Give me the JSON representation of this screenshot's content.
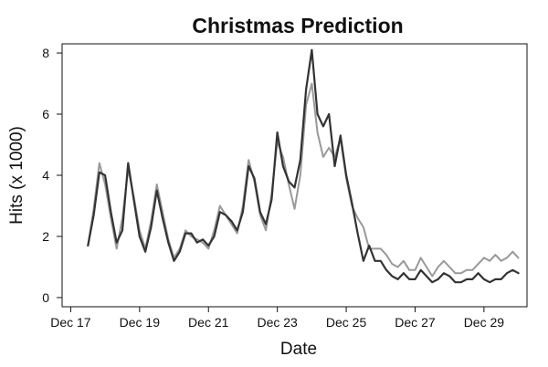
{
  "chart_data": {
    "type": "line",
    "title": "Christmas Prediction",
    "xlabel": "Date",
    "ylabel": "Hits (x 1000)",
    "xlim": [
      "2000-12-16T18:00",
      "2000-12-30T06:00"
    ],
    "ylim": [
      -0.3,
      8.3
    ],
    "x_ticks": [
      "Dec 17",
      "Dec 19",
      "Dec 21",
      "Dec 23",
      "Dec 25",
      "Dec 27",
      "Dec 29"
    ],
    "y_ticks": [
      0,
      2,
      4,
      6,
      8
    ],
    "grid": false,
    "series": [
      {
        "color": "#999999",
        "x": [
          "2000-12-17T12:00",
          "2000-12-17T16:00",
          "2000-12-17T20:00",
          "2000-12-18T00:00",
          "2000-12-18T04:00",
          "2000-12-18T08:00",
          "2000-12-18T12:00",
          "2000-12-18T16:00",
          "2000-12-18T20:00",
          "2000-12-19T00:00",
          "2000-12-19T04:00",
          "2000-12-19T08:00",
          "2000-12-19T12:00",
          "2000-12-19T16:00",
          "2000-12-19T20:00",
          "2000-12-20T00:00",
          "2000-12-20T04:00",
          "2000-12-20T08:00",
          "2000-12-20T12:00",
          "2000-12-20T16:00",
          "2000-12-20T20:00",
          "2000-12-21T00:00",
          "2000-12-21T04:00",
          "2000-12-21T08:00",
          "2000-12-21T12:00",
          "2000-12-21T16:00",
          "2000-12-21T20:00",
          "2000-12-22T00:00",
          "2000-12-22T04:00",
          "2000-12-22T08:00",
          "2000-12-22T12:00",
          "2000-12-22T16:00",
          "2000-12-22T20:00",
          "2000-12-23T00:00",
          "2000-12-23T04:00",
          "2000-12-23T08:00",
          "2000-12-23T12:00",
          "2000-12-23T16:00",
          "2000-12-23T20:00",
          "2000-12-24T00:00",
          "2000-12-24T04:00",
          "2000-12-24T08:00",
          "2000-12-24T12:00",
          "2000-12-24T16:00",
          "2000-12-24T20:00",
          "2000-12-25T00:00",
          "2000-12-25T04:00",
          "2000-12-25T08:00",
          "2000-12-25T12:00",
          "2000-12-25T16:00",
          "2000-12-25T20:00",
          "2000-12-26T00:00",
          "2000-12-26T04:00",
          "2000-12-26T08:00",
          "2000-12-26T12:00",
          "2000-12-26T16:00",
          "2000-12-26T20:00",
          "2000-12-27T00:00",
          "2000-12-27T04:00",
          "2000-12-27T08:00",
          "2000-12-27T12:00",
          "2000-12-27T16:00",
          "2000-12-27T20:00",
          "2000-12-28T00:00",
          "2000-12-28T04:00",
          "2000-12-28T08:00",
          "2000-12-28T12:00",
          "2000-12-28T16:00",
          "2000-12-28T20:00",
          "2000-12-29T00:00",
          "2000-12-29T04:00",
          "2000-12-29T08:00",
          "2000-12-29T12:00",
          "2000-12-29T16:00",
          "2000-12-29T20:00",
          "2000-12-30T00:00"
        ],
        "y": [
          1.7,
          2.9,
          4.4,
          3.7,
          2.6,
          1.6,
          2.6,
          4.2,
          3.3,
          2.2,
          1.6,
          2.5,
          3.7,
          2.8,
          1.9,
          1.3,
          1.6,
          2.2,
          2.0,
          1.9,
          1.8,
          1.6,
          2.2,
          3.0,
          2.7,
          2.4,
          2.1,
          3.0,
          4.5,
          3.8,
          2.7,
          2.2,
          3.4,
          5.1,
          4.6,
          3.7,
          2.9,
          4.0,
          6.3,
          7.0,
          5.4,
          4.6,
          4.9,
          4.6,
          5.2,
          3.9,
          3.0,
          2.6,
          2.3,
          1.6,
          1.6,
          1.6,
          1.4,
          1.1,
          1.0,
          1.2,
          0.9,
          0.9,
          1.3,
          1.0,
          0.7,
          1.0,
          1.2,
          1.0,
          0.8,
          0.8,
          0.9,
          0.9,
          1.1,
          1.3,
          1.2,
          1.4,
          1.2,
          1.3,
          1.5,
          1.3
        ]
      },
      {
        "color": "#333333",
        "x": [
          "2000-12-17T12:00",
          "2000-12-17T16:00",
          "2000-12-17T20:00",
          "2000-12-18T00:00",
          "2000-12-18T04:00",
          "2000-12-18T08:00",
          "2000-12-18T12:00",
          "2000-12-18T16:00",
          "2000-12-18T20:00",
          "2000-12-19T00:00",
          "2000-12-19T04:00",
          "2000-12-19T08:00",
          "2000-12-19T12:00",
          "2000-12-19T16:00",
          "2000-12-19T20:00",
          "2000-12-20T00:00",
          "2000-12-20T04:00",
          "2000-12-20T08:00",
          "2000-12-20T12:00",
          "2000-12-20T16:00",
          "2000-12-20T20:00",
          "2000-12-21T00:00",
          "2000-12-21T04:00",
          "2000-12-21T08:00",
          "2000-12-21T12:00",
          "2000-12-21T16:00",
          "2000-12-21T20:00",
          "2000-12-22T00:00",
          "2000-12-22T04:00",
          "2000-12-22T08:00",
          "2000-12-22T12:00",
          "2000-12-22T16:00",
          "2000-12-22T20:00",
          "2000-12-23T00:00",
          "2000-12-23T04:00",
          "2000-12-23T08:00",
          "2000-12-23T12:00",
          "2000-12-23T16:00",
          "2000-12-23T20:00",
          "2000-12-24T00:00",
          "2000-12-24T04:00",
          "2000-12-24T08:00",
          "2000-12-24T12:00",
          "2000-12-24T16:00",
          "2000-12-24T20:00",
          "2000-12-25T00:00",
          "2000-12-25T04:00",
          "2000-12-25T08:00",
          "2000-12-25T12:00",
          "2000-12-25T16:00",
          "2000-12-25T20:00",
          "2000-12-26T00:00",
          "2000-12-26T04:00",
          "2000-12-26T08:00",
          "2000-12-26T12:00",
          "2000-12-26T16:00",
          "2000-12-26T20:00",
          "2000-12-27T00:00",
          "2000-12-27T04:00",
          "2000-12-27T08:00",
          "2000-12-27T12:00",
          "2000-12-27T16:00",
          "2000-12-27T20:00",
          "2000-12-28T00:00",
          "2000-12-28T04:00",
          "2000-12-28T08:00",
          "2000-12-28T12:00",
          "2000-12-28T16:00",
          "2000-12-28T20:00",
          "2000-12-29T00:00",
          "2000-12-29T04:00",
          "2000-12-29T08:00",
          "2000-12-29T12:00",
          "2000-12-29T16:00",
          "2000-12-29T20:00",
          "2000-12-30T00:00"
        ],
        "y": [
          1.7,
          2.7,
          4.1,
          4.0,
          2.8,
          1.8,
          2.2,
          4.4,
          3.2,
          2.0,
          1.5,
          2.3,
          3.5,
          2.6,
          1.8,
          1.2,
          1.5,
          2.1,
          2.1,
          1.8,
          1.9,
          1.7,
          2.0,
          2.8,
          2.7,
          2.5,
          2.2,
          2.8,
          4.3,
          3.9,
          2.8,
          2.4,
          3.2,
          5.4,
          4.3,
          3.8,
          3.6,
          4.5,
          6.8,
          8.1,
          6.0,
          5.6,
          6.0,
          4.3,
          5.3,
          4.0,
          3.1,
          2.1,
          1.2,
          1.7,
          1.2,
          1.2,
          0.9,
          0.7,
          0.6,
          0.8,
          0.6,
          0.6,
          0.9,
          0.7,
          0.5,
          0.6,
          0.8,
          0.7,
          0.5,
          0.5,
          0.6,
          0.6,
          0.8,
          0.6,
          0.5,
          0.6,
          0.6,
          0.8,
          0.9,
          0.8
        ]
      }
    ]
  }
}
